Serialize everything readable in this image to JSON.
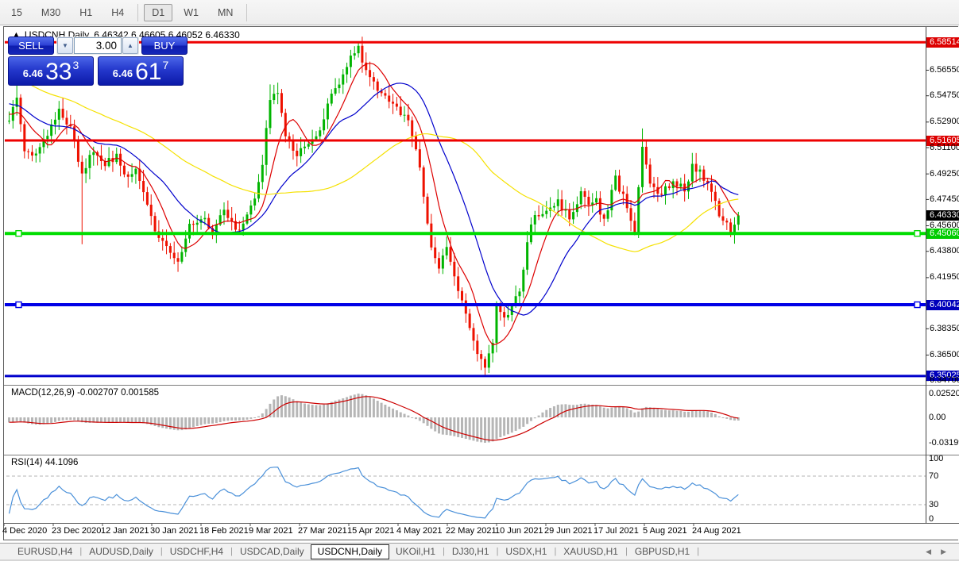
{
  "toolbar": {
    "timeframes": [
      {
        "label": "15",
        "active": false
      },
      {
        "label": "M30",
        "active": false
      },
      {
        "label": "H1",
        "active": false
      },
      {
        "label": "H4",
        "active": false
      },
      {
        "label": "D1",
        "active": true
      },
      {
        "label": "W1",
        "active": false
      },
      {
        "label": "MN",
        "active": false
      }
    ]
  },
  "chart_window": {
    "symbol_title": "USDCNH,Daily",
    "ohlc": "6.46342 6.46605 6.46052 6.46330"
  },
  "trade_panel": {
    "sell_label": "SELL",
    "buy_label": "BUY",
    "volume": "3.00",
    "sell_small": "6.46",
    "sell_big": "33",
    "sell_sup": "3",
    "buy_small": "6.46",
    "buy_big": "61",
    "buy_sup": "7",
    "spin_down": "▼",
    "spin_up": "▲"
  },
  "indicators": {
    "macd_label": "MACD(12,26,9) -0.002707 0.001585",
    "rsi_label": "RSI(14) 44.1096"
  },
  "price_axis": {
    "ticks": [
      {
        "t": "6.58514",
        "p": 6.58514,
        "s": "red"
      },
      {
        "t": "6.56550",
        "p": 6.5655,
        "s": "plain"
      },
      {
        "t": "6.54750",
        "p": 6.5475,
        "s": "plain"
      },
      {
        "t": "6.52900",
        "p": 6.529,
        "s": "plain"
      },
      {
        "t": "6.51605",
        "p": 6.51605,
        "s": "red"
      },
      {
        "t": "6.51100",
        "p": 6.511,
        "s": "plain"
      },
      {
        "t": "6.49250",
        "p": 6.4925,
        "s": "plain"
      },
      {
        "t": "6.47450",
        "p": 6.4745,
        "s": "plain"
      },
      {
        "t": "6.46330",
        "p": 6.4633,
        "s": "black"
      },
      {
        "t": "6.45600",
        "p": 6.456,
        "s": "plain"
      },
      {
        "t": "6.45060",
        "p": 6.4506,
        "s": "green"
      },
      {
        "t": "6.43800",
        "p": 6.438,
        "s": "plain"
      },
      {
        "t": "6.41950",
        "p": 6.4195,
        "s": "plain"
      },
      {
        "t": "6.40042",
        "p": 6.40042,
        "s": "blue"
      },
      {
        "t": "6.38350",
        "p": 6.3835,
        "s": "plain"
      },
      {
        "t": "6.36500",
        "p": 6.365,
        "s": "plain"
      },
      {
        "t": "6.35025",
        "p": 6.35025,
        "s": "blue"
      },
      {
        "t": "6.34700",
        "p": 6.347,
        "s": "plain"
      }
    ]
  },
  "macd_axis": {
    "ticks": [
      "0.02520",
      "0.00",
      "-0.03199"
    ]
  },
  "rsi_axis": {
    "ticks": [
      "100",
      "70",
      "30",
      "0"
    ]
  },
  "date_axis": [
    "4 Dec 2020",
    "23 Dec 2020",
    "12 Jan 2021",
    "30 Jan 2021",
    "18 Feb 2021",
    "9 Mar 2021",
    "27 Mar 2021",
    "15 Apr 2021",
    "4 May 2021",
    "22 May 2021",
    "10 Jun 2021",
    "29 Jun 2021",
    "17 Jul 2021",
    "5 Aug 2021",
    "24 Aug 2021"
  ],
  "tabs": {
    "items": [
      {
        "label": "EURUSD,H4",
        "active": false
      },
      {
        "label": "AUDUSD,Daily",
        "active": false
      },
      {
        "label": "USDCHF,H4",
        "active": false
      },
      {
        "label": "USDCAD,Daily",
        "active": false
      },
      {
        "label": "USDCNH,Daily",
        "active": true
      },
      {
        "label": "UKOil,H1",
        "active": false
      },
      {
        "label": "DJ30,H1",
        "active": false
      },
      {
        "label": "USDX,H1",
        "active": false
      },
      {
        "label": "XAUUSD,H1",
        "active": false
      },
      {
        "label": "GBPUSD,H1",
        "active": false
      }
    ],
    "scroll_left": "◀",
    "scroll_right": "▶"
  },
  "chart_data": {
    "type": "candlestick",
    "symbol": "USDCNH",
    "timeframe": "Daily",
    "current": {
      "open": 6.46342,
      "high": 6.46605,
      "low": 6.46052,
      "close": 6.4633
    },
    "levels": [
      {
        "price": 6.58514,
        "color": "#ee0000",
        "width": 3,
        "handles": false
      },
      {
        "price": 6.51605,
        "color": "#ee0000",
        "width": 3,
        "handles": false
      },
      {
        "price": 6.4506,
        "color": "#00dd00",
        "width": 4,
        "handles": true
      },
      {
        "price": 6.40042,
        "color": "#0000e6",
        "width": 4,
        "handles": true
      },
      {
        "price": 6.35025,
        "color": "#0000cc",
        "width": 3,
        "handles": false
      }
    ],
    "colors": {
      "up": "#00b400",
      "down": "#ee1100",
      "ma_fast": "#dd0000",
      "ma_mid": "#0000cc",
      "ma_slow": "#f5e100",
      "macd_hist": "#b6b6b6",
      "macd_signal": "#cc0000",
      "rsi": "#4a90d9",
      "label_red": "#dd0000",
      "label_green": "#00cc00",
      "label_blue": "#0000bb",
      "label_black": "#000000"
    },
    "ma_periods": {
      "fast": 8,
      "mid": 20,
      "slow": 55
    },
    "macd_params": [
      12,
      26,
      9
    ],
    "rsi_period": 14,
    "num_candles": 191,
    "prehistory": {
      "start": 6.6,
      "end": 6.532,
      "count": 60
    },
    "close_anchors": [
      [
        0,
        6.53
      ],
      [
        2,
        6.547
      ],
      [
        4,
        6.51
      ],
      [
        7,
        6.505
      ],
      [
        10,
        6.522
      ],
      [
        13,
        6.537
      ],
      [
        16,
        6.525
      ],
      [
        19,
        6.49
      ],
      [
        22,
        6.51
      ],
      [
        25,
        6.499
      ],
      [
        28,
        6.506
      ],
      [
        31,
        6.488
      ],
      [
        33,
        6.498
      ],
      [
        36,
        6.47
      ],
      [
        38,
        6.452
      ],
      [
        41,
        6.44
      ],
      [
        44,
        6.433
      ],
      [
        47,
        6.455
      ],
      [
        50,
        6.463
      ],
      [
        53,
        6.452
      ],
      [
        56,
        6.466
      ],
      [
        59,
        6.452
      ],
      [
        62,
        6.461
      ],
      [
        64,
        6.475
      ],
      [
        66,
        6.498
      ],
      [
        67,
        6.525
      ],
      [
        68,
        6.545
      ],
      [
        70,
        6.552
      ],
      [
        72,
        6.518
      ],
      [
        75,
        6.507
      ],
      [
        78,
        6.513
      ],
      [
        81,
        6.525
      ],
      [
        83,
        6.54
      ],
      [
        85,
        6.552
      ],
      [
        87,
        6.564
      ],
      [
        89,
        6.574
      ],
      [
        91,
        6.581
      ],
      [
        93,
        6.565
      ],
      [
        95,
        6.556
      ],
      [
        98,
        6.548
      ],
      [
        101,
        6.541
      ],
      [
        104,
        6.528
      ],
      [
        106,
        6.512
      ],
      [
        108,
        6.478
      ],
      [
        110,
        6.443
      ],
      [
        112,
        6.428
      ],
      [
        114,
        6.439
      ],
      [
        116,
        6.421
      ],
      [
        118,
        6.401
      ],
      [
        120,
        6.386
      ],
      [
        122,
        6.366
      ],
      [
        124,
        6.355
      ],
      [
        126,
        6.374
      ],
      [
        127,
        6.397
      ],
      [
        129,
        6.389
      ],
      [
        131,
        6.401
      ],
      [
        133,
        6.409
      ],
      [
        135,
        6.447
      ],
      [
        137,
        6.461
      ],
      [
        140,
        6.469
      ],
      [
        143,
        6.473
      ],
      [
        146,
        6.461
      ],
      [
        149,
        6.479
      ],
      [
        151,
        6.471
      ],
      [
        153,
        6.473
      ],
      [
        155,
        6.459
      ],
      [
        158,
        6.489
      ],
      [
        161,
        6.471
      ],
      [
        163,
        6.453
      ],
      [
        165,
        6.511
      ],
      [
        167,
        6.483
      ],
      [
        170,
        6.477
      ],
      [
        173,
        6.489
      ],
      [
        176,
        6.481
      ],
      [
        178,
        6.498
      ],
      [
        180,
        6.493
      ],
      [
        182,
        6.487
      ],
      [
        184,
        6.471
      ],
      [
        186,
        6.459
      ],
      [
        188,
        6.453
      ],
      [
        190,
        6.4633
      ]
    ],
    "spikes": [
      {
        "i": 2,
        "high": 6.555
      },
      {
        "i": 19,
        "low": 6.443
      },
      {
        "i": 68,
        "high": 6.5555
      },
      {
        "i": 91,
        "high": 6.5848
      },
      {
        "i": 124,
        "low": 6.3528
      },
      {
        "i": 165,
        "high": 6.5245
      },
      {
        "i": 178,
        "high": 6.506
      }
    ]
  }
}
